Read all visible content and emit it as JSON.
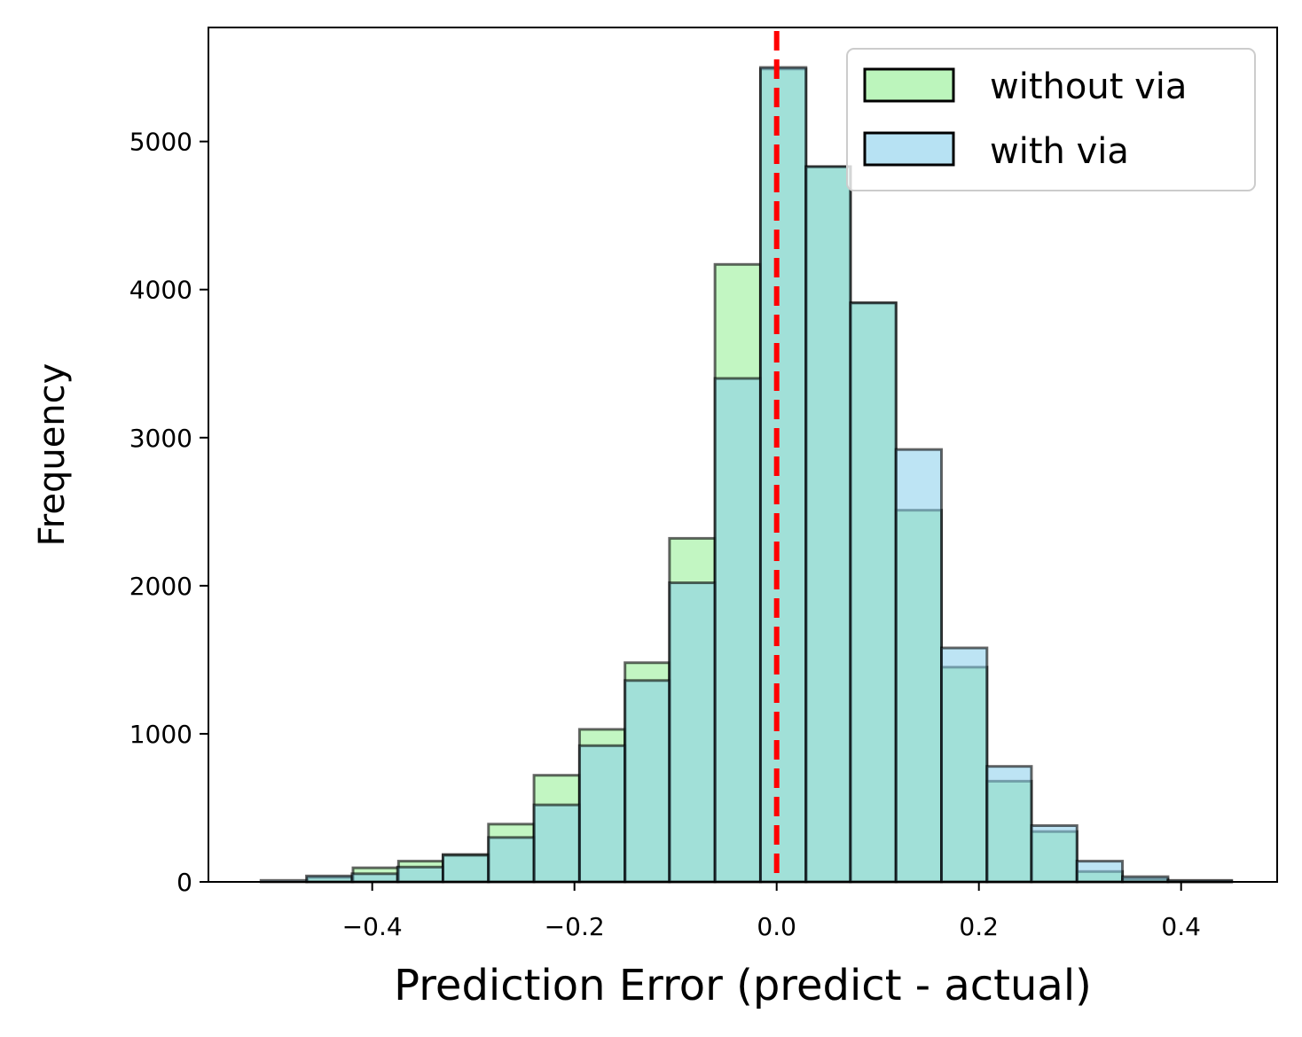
{
  "chart_data": {
    "type": "histogram",
    "xlabel": "Prediction Error (predict - actual)",
    "ylabel": "Frequency",
    "xlim": [
      -0.562,
      0.495
    ],
    "ylim": [
      0,
      5770
    ],
    "xticks": [
      -0.4,
      -0.2,
      0.0,
      0.2,
      0.4
    ],
    "xtick_labels": [
      "−0.4",
      "−0.2",
      "0.0",
      "0.2",
      "0.4"
    ],
    "yticks": [
      0,
      1000,
      2000,
      3000,
      4000,
      5000
    ],
    "ytick_labels": [
      "0",
      "1000",
      "2000",
      "3000",
      "4000",
      "5000"
    ],
    "grid": false,
    "legend_position": "top-right",
    "reference_line": {
      "x": 0.0,
      "color": "#ff0000",
      "style": "dashed"
    },
    "series": [
      {
        "name": "without via",
        "color": "#90ee90",
        "opacity": 0.55,
        "bins": [
          [
            -0.464,
            -0.419,
            30
          ],
          [
            -0.419,
            -0.374,
            95
          ],
          [
            -0.374,
            -0.33,
            140
          ],
          [
            -0.33,
            -0.285,
            185
          ],
          [
            -0.285,
            -0.24,
            390
          ],
          [
            -0.24,
            -0.195,
            720
          ],
          [
            -0.195,
            -0.15,
            1030
          ],
          [
            -0.15,
            -0.106,
            1480
          ],
          [
            -0.106,
            -0.061,
            2320
          ],
          [
            -0.061,
            -0.016,
            4170
          ],
          [
            -0.016,
            0.029,
            5490
          ],
          [
            0.029,
            0.073,
            4830
          ],
          [
            0.073,
            0.118,
            3910
          ],
          [
            0.118,
            0.163,
            2510
          ],
          [
            0.163,
            0.208,
            1450
          ],
          [
            0.208,
            0.252,
            680
          ],
          [
            0.252,
            0.297,
            340
          ],
          [
            0.297,
            0.342,
            70
          ],
          [
            0.342,
            0.387,
            20
          ],
          [
            0.387,
            0.45,
            5
          ]
        ]
      },
      {
        "name": "with via",
        "color": "#87ceeb",
        "opacity": 0.55,
        "bins": [
          [
            -0.51,
            -0.465,
            10
          ],
          [
            -0.465,
            -0.42,
            40
          ],
          [
            -0.42,
            -0.375,
            55
          ],
          [
            -0.375,
            -0.33,
            100
          ],
          [
            -0.33,
            -0.285,
            180
          ],
          [
            -0.285,
            -0.24,
            300
          ],
          [
            -0.24,
            -0.195,
            520
          ],
          [
            -0.195,
            -0.15,
            920
          ],
          [
            -0.15,
            -0.106,
            1360
          ],
          [
            -0.106,
            -0.061,
            2020
          ],
          [
            -0.061,
            -0.016,
            3400
          ],
          [
            -0.016,
            0.029,
            5500
          ],
          [
            0.029,
            0.073,
            4830
          ],
          [
            0.073,
            0.118,
            3910
          ],
          [
            0.118,
            0.163,
            2920
          ],
          [
            0.163,
            0.208,
            1580
          ],
          [
            0.208,
            0.252,
            780
          ],
          [
            0.252,
            0.297,
            380
          ],
          [
            0.297,
            0.342,
            140
          ],
          [
            0.342,
            0.387,
            35
          ],
          [
            0.387,
            0.45,
            10
          ]
        ]
      }
    ]
  }
}
